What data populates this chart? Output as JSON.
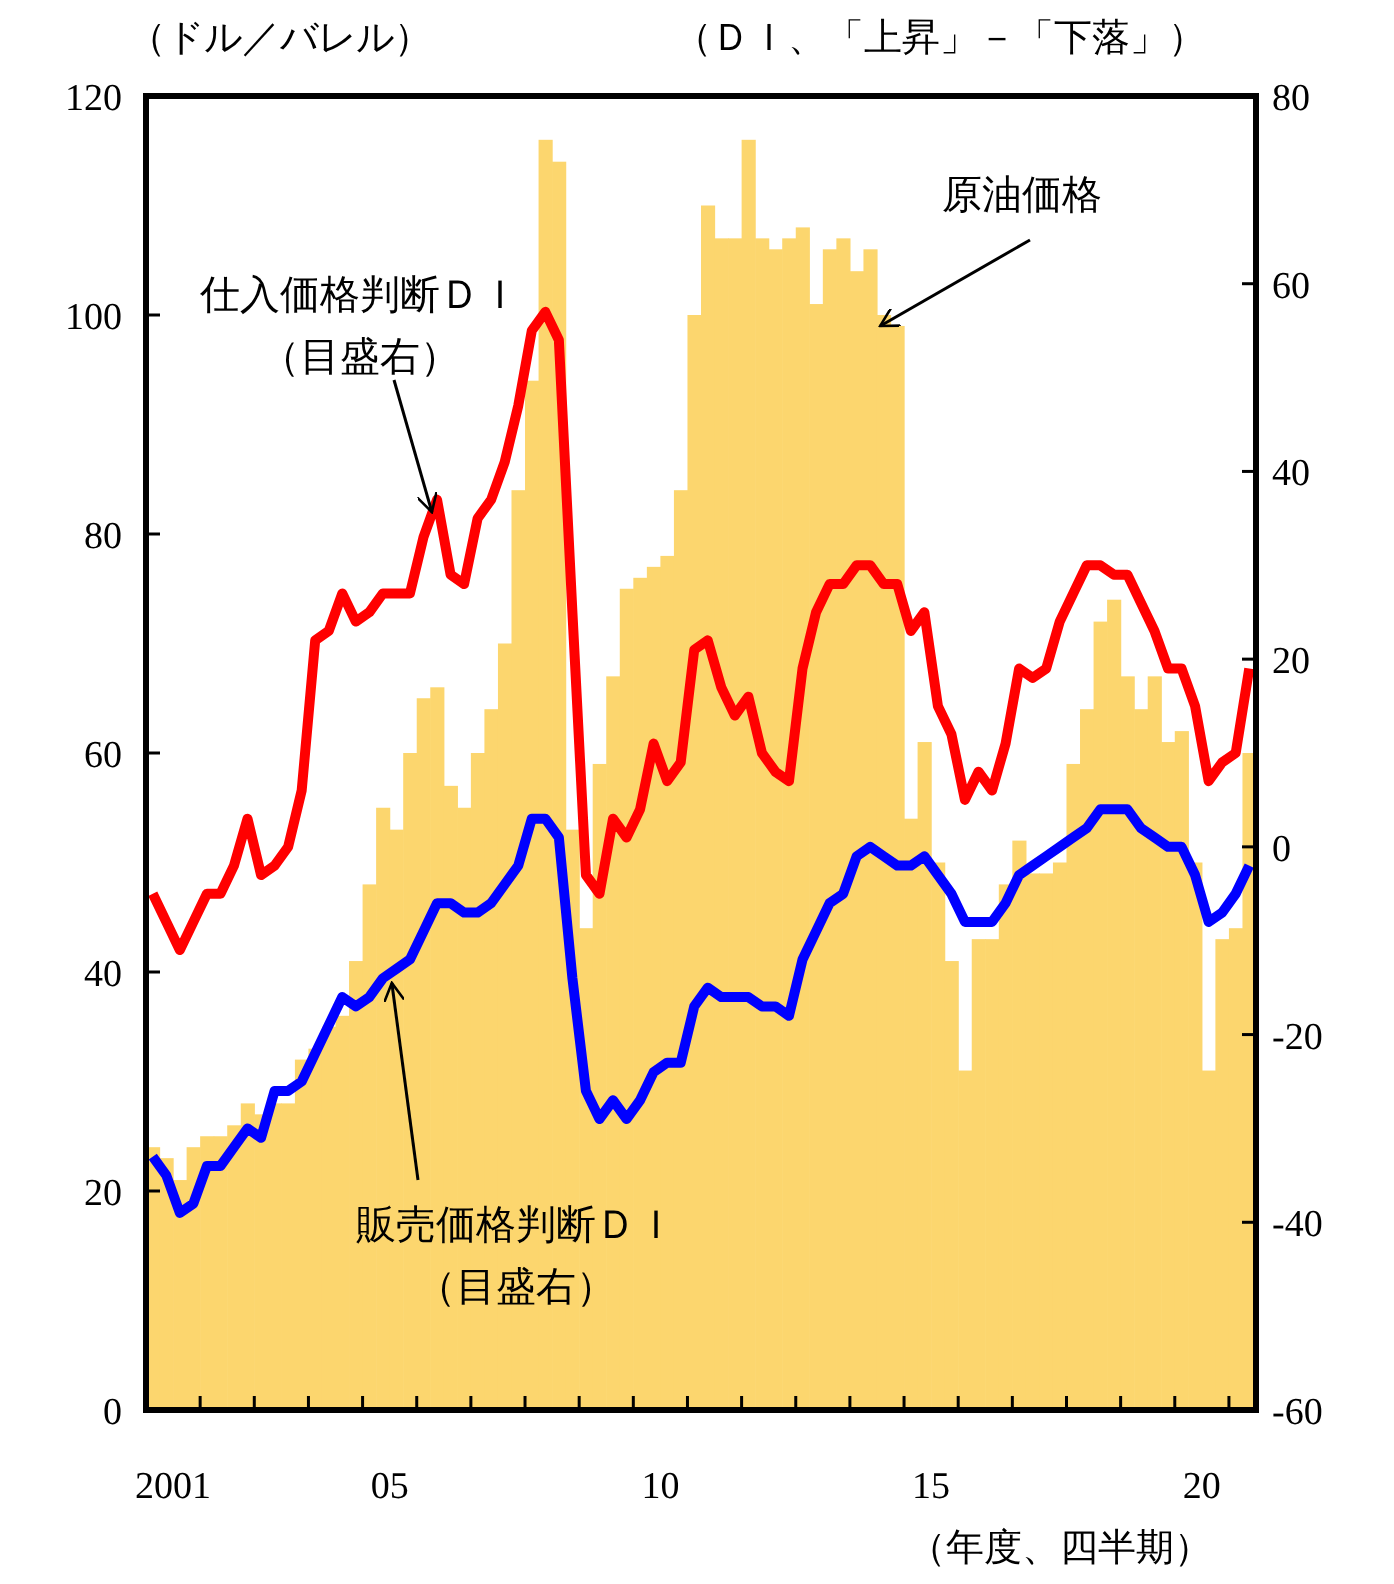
{
  "chart_data": {
    "type": "bar",
    "ylabel": "（ドル／バレル）",
    "y2label": "（ＤＩ、「上昇」－「下落」）",
    "xlabel": "（年度、四半期）",
    "x": [
      2000.625,
      2000.875,
      2001.125,
      2001.375,
      2001.625,
      2001.875,
      2002.125,
      2002.375,
      2002.625,
      2002.875,
      2003.125,
      2003.375,
      2003.625,
      2003.875,
      2004.125,
      2004.375,
      2004.625,
      2004.875,
      2005.125,
      2005.375,
      2005.625,
      2005.875,
      2006.125,
      2006.375,
      2006.625,
      2006.875,
      2007.125,
      2007.375,
      2007.625,
      2007.875,
      2008.125,
      2008.375,
      2008.625,
      2008.875,
      2009.125,
      2009.375,
      2009.625,
      2009.875,
      2010.125,
      2010.375,
      2010.625,
      2010.875,
      2011.125,
      2011.375,
      2011.625,
      2011.875,
      2012.125,
      2012.375,
      2012.625,
      2012.875,
      2013.125,
      2013.375,
      2013.625,
      2013.875,
      2014.125,
      2014.375,
      2014.625,
      2014.875,
      2015.125,
      2015.375,
      2015.625,
      2015.875,
      2016.125,
      2016.375,
      2016.625,
      2016.875,
      2017.125,
      2017.375,
      2017.625,
      2017.875,
      2018.125,
      2018.375,
      2018.625,
      2018.875,
      2019.125,
      2019.375,
      2019.625,
      2019.875,
      2020.125,
      2020.375,
      2020.625,
      2020.875
    ],
    "xlim": [
      2000.5,
      2021
    ],
    "xticks": [
      {
        "value": 2001,
        "label": "2001"
      },
      {
        "value": 2005,
        "label": "05"
      },
      {
        "value": 2010,
        "label": "10"
      },
      {
        "value": 2015,
        "label": "15"
      },
      {
        "value": 2020,
        "label": "20"
      },
      {
        "value": 2001.5,
        "label": null
      },
      {
        "value": 2002.5,
        "label": null
      },
      {
        "value": 2003.5,
        "label": null
      },
      {
        "value": 2004.5,
        "label": null
      },
      {
        "value": 2005.5,
        "label": null
      },
      {
        "value": 2006.5,
        "label": null
      },
      {
        "value": 2007.5,
        "label": null
      },
      {
        "value": 2008.5,
        "label": null
      },
      {
        "value": 2009.5,
        "label": null
      },
      {
        "value": 2010.5,
        "label": null
      },
      {
        "value": 2011.5,
        "label": null
      },
      {
        "value": 2012.5,
        "label": null
      },
      {
        "value": 2013.5,
        "label": null
      },
      {
        "value": 2014.5,
        "label": null
      },
      {
        "value": 2015.5,
        "label": null
      },
      {
        "value": 2016.5,
        "label": null
      },
      {
        "value": 2017.5,
        "label": null
      },
      {
        "value": 2018.5,
        "label": null
      },
      {
        "value": 2019.5,
        "label": null
      },
      {
        "value": 2020.5,
        "label": null
      }
    ],
    "ylim": [
      0,
      120
    ],
    "yticks": [
      0,
      20,
      40,
      60,
      80,
      100,
      120
    ],
    "y2lim": [
      -60,
      80
    ],
    "y2ticks": [
      -60,
      -40,
      -20,
      0,
      20,
      40,
      60,
      80
    ],
    "series": [
      {
        "color": "#fcd66e",
        "values": [
          24,
          23,
          21,
          24,
          25,
          25,
          26,
          28,
          27,
          28,
          28,
          32,
          33,
          35,
          36,
          41,
          48,
          55,
          53,
          60,
          65,
          66,
          57,
          55,
          60,
          64,
          70,
          84,
          94,
          116,
          114,
          53,
          44,
          59,
          67,
          75,
          76,
          77,
          78,
          84,
          100,
          110,
          107,
          107,
          116,
          107,
          106,
          107,
          108,
          101,
          106,
          107,
          104,
          106,
          100,
          99,
          54,
          61,
          50,
          41,
          31,
          43,
          43,
          48,
          52,
          49,
          49,
          50,
          59,
          64,
          72,
          74,
          67,
          64,
          67,
          61,
          62,
          50,
          31,
          43,
          44,
          60
        ]
      },
      {
        "type": "line",
        "axis": "y2",
        "color": "#ff0000",
        "values": [
          -5,
          -8,
          -11,
          -8,
          -5,
          -5,
          -2,
          3,
          -3,
          -2,
          0,
          6,
          22,
          23,
          27,
          24,
          25,
          27,
          27,
          27,
          33,
          37,
          29,
          28,
          35,
          37,
          41,
          47,
          55,
          57,
          54,
          25,
          -3,
          -5,
          3,
          1,
          4,
          11,
          7,
          9,
          21,
          22,
          17,
          14,
          16,
          10,
          8,
          7,
          19,
          25,
          28,
          28,
          30,
          30,
          28,
          28,
          23,
          25,
          15,
          12,
          5,
          8,
          6,
          11,
          19,
          18,
          19,
          24,
          27,
          30,
          30,
          29,
          29,
          26,
          23,
          19,
          19,
          15,
          7,
          9,
          10,
          19
        ]
      },
      {
        "type": "line",
        "axis": "y2",
        "color": "#0000ff",
        "values": [
          -33,
          -35,
          -39,
          -38,
          -34,
          -34,
          -32,
          -30,
          -31,
          -26,
          -26,
          -25,
          -22,
          -19,
          -16,
          -17,
          -16,
          -14,
          -13,
          -12,
          -9,
          -6,
          -6,
          -7,
          -7,
          -6,
          -4,
          -2,
          3,
          3,
          1,
          -14,
          -26,
          -29,
          -27,
          -29,
          -27,
          -24,
          -23,
          -23,
          -17,
          -15,
          -16,
          -16,
          -16,
          -17,
          -17,
          -18,
          -12,
          -9,
          -6,
          -5,
          -1,
          0,
          -1,
          -2,
          -2,
          -1,
          -3,
          -5,
          -8,
          -8,
          -8,
          -6,
          -3,
          -2,
          -1,
          0,
          1,
          2,
          4,
          4,
          4,
          2,
          1,
          0,
          0,
          -3,
          -8,
          -7,
          -5,
          -2
        ]
      }
    ],
    "annotations": [
      "仕入価格判断ＤＩ",
      {
        "text": "（目盛右）",
        "x": 2005.78,
        "y": 82
      },
      {
        "text": "販売価格判断ＤＩ",
        "x": 2005.04,
        "y": 39
      },
      "（目盛右）",
      {
        "text": "原油価格",
        "x": 2014.06,
        "y": 99
      }
    ]
  }
}
